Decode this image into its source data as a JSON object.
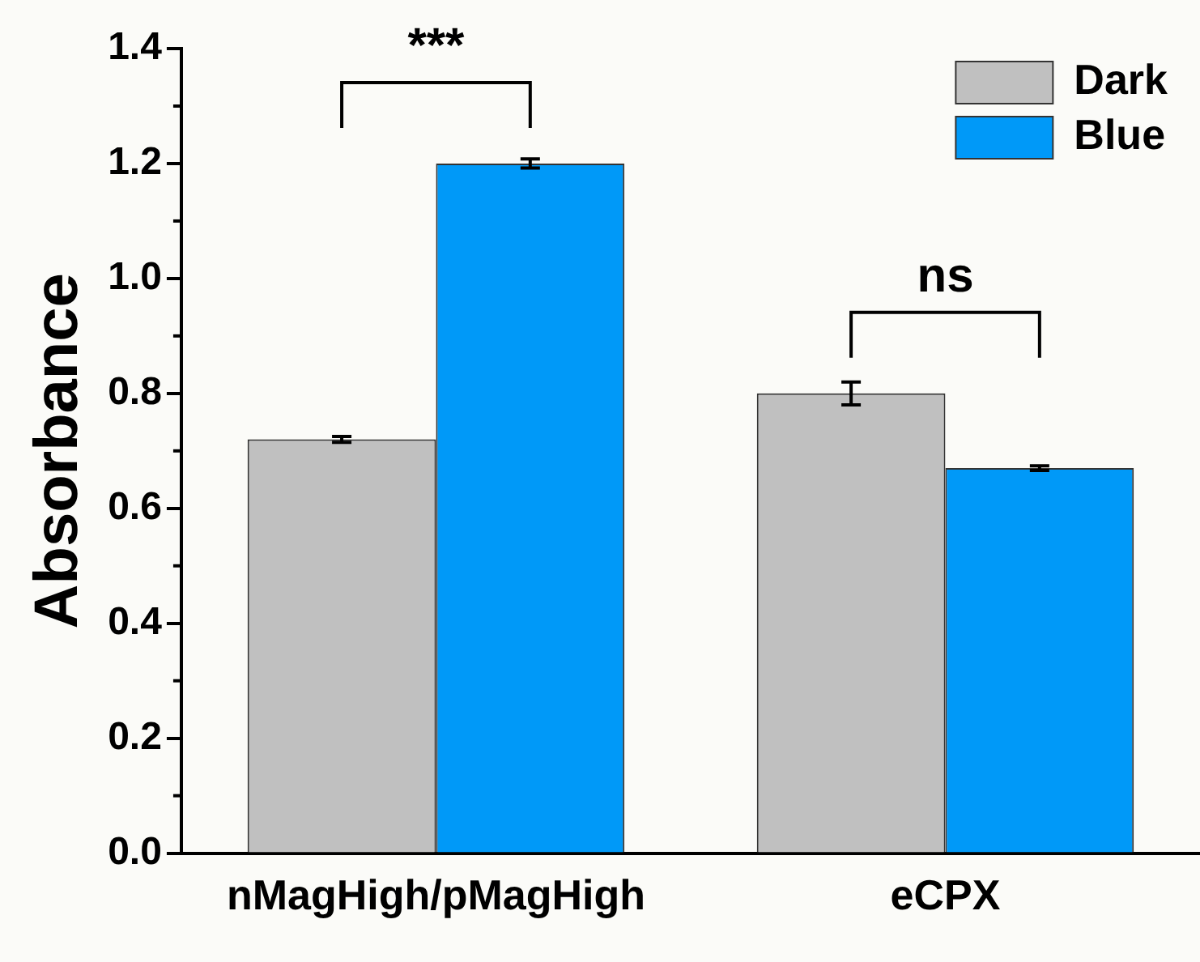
{
  "chart_data": {
    "type": "bar",
    "ylabel": "Absorbance",
    "categories": [
      "nMagHigh/pMagHigh",
      "eCPX"
    ],
    "series": [
      {
        "name": "Dark",
        "color": "#c0c0c0",
        "values": [
          0.72,
          0.8
        ],
        "errors": [
          0.005,
          0.02
        ]
      },
      {
        "name": "Blue",
        "color": "#0099f8",
        "values": [
          1.2,
          0.67
        ],
        "errors": [
          0.008,
          0.004
        ]
      }
    ],
    "ylim": [
      0,
      1.4
    ],
    "yticks": [
      {
        "value": 0,
        "label": "0.0"
      },
      0.2,
      0.4,
      0.6,
      0.8,
      {
        "value": 1,
        "label": "1.0"
      },
      1.2,
      1.4
    ],
    "grid": false,
    "legend": "top right",
    "annotations": [
      "***",
      "ns"
    ]
  }
}
